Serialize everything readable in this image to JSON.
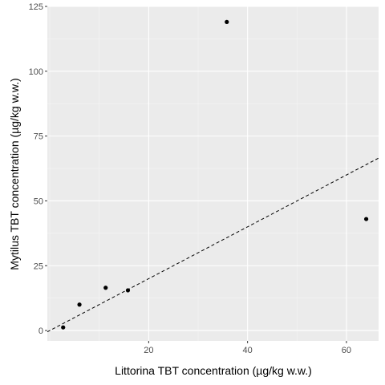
{
  "chart_data": {
    "type": "scatter",
    "xlabel": "Littorina TBT concentration (µg/kg w.w.)",
    "ylabel": "Mytilus TBT concentration (µg/kg w.w.)",
    "xlim": [
      -0.5,
      66.5
    ],
    "ylim": [
      -4,
      125
    ],
    "x_ticks": [
      20,
      40,
      60
    ],
    "y_ticks": [
      0,
      25,
      50,
      75,
      100,
      125
    ],
    "x_tick_labels": [
      "20",
      "40",
      "60"
    ],
    "y_tick_labels": [
      "0",
      "25",
      "50",
      "75",
      "100",
      "125"
    ],
    "grid": true,
    "legend": "none",
    "points": [
      {
        "x": 2.7,
        "y": 1.2
      },
      {
        "x": 6.0,
        "y": 10.0
      },
      {
        "x": 11.3,
        "y": 16.5
      },
      {
        "x": 15.8,
        "y": 15.5
      },
      {
        "x": 35.8,
        "y": 119.0
      },
      {
        "x": 64.0,
        "y": 43.0
      }
    ],
    "reference_line": {
      "style": "dashed",
      "slope": 1.0,
      "intercept": 0
    },
    "colors": {
      "panel": "#ebebeb",
      "grid_major": "#ffffff",
      "grid_minor": "#f5f5f5",
      "points": "#000000",
      "line": "#000000"
    }
  }
}
